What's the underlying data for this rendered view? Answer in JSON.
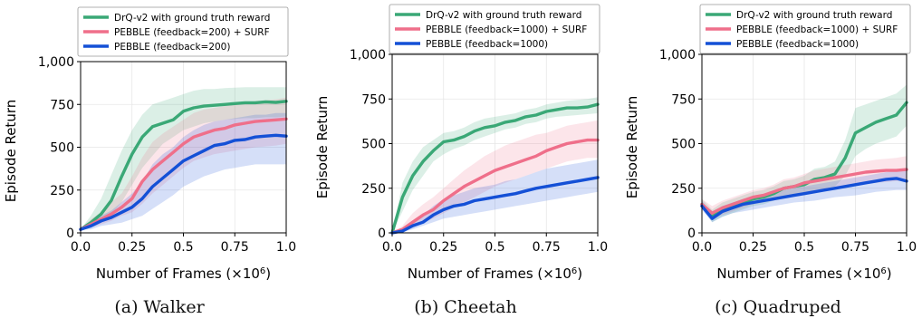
{
  "colors": {
    "drq": "#3aa876",
    "surf": "#ef6f8a",
    "pebble": "#1450d6"
  },
  "chart_data": [
    {
      "type": "line",
      "caption": "(a) Walker",
      "xlabel": "Number of Frames (×10",
      "xlabel_sup": "6",
      "xlabel_tail": ")",
      "ylabel": "Episode Return",
      "xlim": [
        0,
        1.0
      ],
      "ylim": [
        0,
        1000
      ],
      "xticks": [
        "0.0",
        "0.25",
        "0.5",
        "0.75",
        "1.0"
      ],
      "yticks": [
        "0",
        "250",
        "500",
        "750",
        "1,000"
      ],
      "grid": true,
      "legend_placement": "top",
      "series": [
        {
          "name": "DrQ-v2 with ground truth reward",
          "color_key": "drq",
          "x": [
            0,
            0.05,
            0.1,
            0.15,
            0.2,
            0.25,
            0.3,
            0.35,
            0.4,
            0.45,
            0.5,
            0.55,
            0.6,
            0.65,
            0.7,
            0.75,
            0.8,
            0.85,
            0.9,
            0.95,
            1.0
          ],
          "y": [
            20,
            60,
            110,
            190,
            330,
            460,
            560,
            620,
            640,
            660,
            710,
            730,
            740,
            745,
            750,
            755,
            760,
            760,
            765,
            762,
            768
          ],
          "lower": [
            20,
            40,
            70,
            110,
            180,
            280,
            380,
            450,
            520,
            560,
            600,
            620,
            640,
            650,
            660,
            665,
            670,
            670,
            675,
            675,
            680
          ],
          "upper": [
            20,
            100,
            200,
            340,
            480,
            600,
            690,
            750,
            770,
            790,
            810,
            830,
            840,
            840,
            845,
            848,
            850,
            850,
            850,
            850,
            850
          ]
        },
        {
          "name": "PEBBLE (feedback=200) + SURF",
          "color_key": "surf",
          "x": [
            0,
            0.05,
            0.1,
            0.15,
            0.2,
            0.25,
            0.3,
            0.35,
            0.4,
            0.45,
            0.5,
            0.55,
            0.6,
            0.65,
            0.7,
            0.75,
            0.8,
            0.85,
            0.9,
            0.95,
            1.0
          ],
          "y": [
            20,
            50,
            80,
            110,
            150,
            200,
            300,
            370,
            420,
            470,
            520,
            560,
            580,
            600,
            610,
            630,
            640,
            650,
            655,
            660,
            665
          ],
          "lower": [
            20,
            30,
            50,
            70,
            100,
            120,
            170,
            230,
            280,
            330,
            380,
            420,
            440,
            460,
            470,
            480,
            490,
            500,
            505,
            510,
            520
          ],
          "upper": [
            20,
            80,
            120,
            180,
            230,
            330,
            440,
            530,
            580,
            620,
            660,
            700,
            720,
            730,
            740,
            750,
            760,
            770,
            775,
            780,
            790
          ]
        },
        {
          "name": "PEBBLE (feedback=200)",
          "color_key": "pebble",
          "x": [
            0,
            0.05,
            0.1,
            0.15,
            0.2,
            0.25,
            0.3,
            0.35,
            0.4,
            0.45,
            0.5,
            0.55,
            0.6,
            0.65,
            0.7,
            0.75,
            0.8,
            0.85,
            0.9,
            0.95,
            1.0
          ],
          "y": [
            20,
            40,
            70,
            90,
            120,
            150,
            200,
            270,
            320,
            370,
            420,
            450,
            480,
            510,
            520,
            540,
            545,
            560,
            565,
            570,
            565
          ],
          "lower": [
            20,
            20,
            40,
            50,
            60,
            80,
            100,
            140,
            180,
            220,
            270,
            300,
            330,
            350,
            370,
            380,
            390,
            400,
            400,
            400,
            400
          ],
          "upper": [
            20,
            60,
            100,
            130,
            180,
            230,
            300,
            400,
            460,
            500,
            560,
            600,
            630,
            650,
            660,
            670,
            680,
            690,
            690,
            700,
            700
          ]
        }
      ]
    },
    {
      "type": "line",
      "caption": "(b) Cheetah",
      "xlabel": "Number of Frames (×10",
      "xlabel_sup": "6",
      "xlabel_tail": ")",
      "ylabel": "Episode Return",
      "xlim": [
        0,
        1.0
      ],
      "ylim": [
        0,
        1000
      ],
      "xticks": [
        "0.0",
        "0.25",
        "0.5",
        "0.75",
        "1.0"
      ],
      "yticks": [
        "0",
        "250",
        "500",
        "750",
        "1,000"
      ],
      "grid": true,
      "legend_placement": "top",
      "series": [
        {
          "name": "DrQ-v2 with ground truth reward",
          "color_key": "drq",
          "x": [
            0,
            0.05,
            0.1,
            0.15,
            0.2,
            0.25,
            0.3,
            0.35,
            0.4,
            0.45,
            0.5,
            0.55,
            0.6,
            0.65,
            0.7,
            0.75,
            0.8,
            0.85,
            0.9,
            0.95,
            1.0
          ],
          "y": [
            0,
            200,
            320,
            400,
            460,
            510,
            520,
            540,
            570,
            590,
            600,
            620,
            630,
            650,
            660,
            680,
            690,
            700,
            700,
            705,
            720
          ],
          "lower": [
            0,
            120,
            240,
            320,
            400,
            440,
            470,
            490,
            520,
            540,
            560,
            580,
            590,
            610,
            620,
            640,
            650,
            655,
            660,
            665,
            670
          ],
          "upper": [
            0,
            280,
            400,
            480,
            520,
            560,
            570,
            590,
            620,
            640,
            650,
            660,
            670,
            690,
            700,
            720,
            730,
            740,
            745,
            750,
            760
          ]
        },
        {
          "name": "PEBBLE (feedback=1000) + SURF",
          "color_key": "surf",
          "x": [
            0,
            0.05,
            0.1,
            0.15,
            0.2,
            0.25,
            0.3,
            0.35,
            0.4,
            0.45,
            0.5,
            0.55,
            0.6,
            0.65,
            0.7,
            0.75,
            0.8,
            0.85,
            0.9,
            0.95,
            1.0
          ],
          "y": [
            0,
            20,
            60,
            100,
            130,
            180,
            220,
            260,
            290,
            320,
            350,
            370,
            390,
            410,
            430,
            460,
            480,
            500,
            510,
            520,
            520
          ],
          "lower": [
            0,
            10,
            30,
            60,
            80,
            110,
            140,
            170,
            200,
            230,
            260,
            280,
            300,
            320,
            340,
            360,
            380,
            400,
            410,
            420,
            420
          ],
          "upper": [
            0,
            40,
            110,
            160,
            200,
            250,
            300,
            350,
            390,
            430,
            460,
            490,
            510,
            530,
            550,
            560,
            580,
            600,
            610,
            620,
            630
          ]
        },
        {
          "name": "PEBBLE (feedback=1000)",
          "color_key": "pebble",
          "x": [
            0,
            0.05,
            0.1,
            0.15,
            0.2,
            0.25,
            0.3,
            0.35,
            0.4,
            0.45,
            0.5,
            0.55,
            0.6,
            0.65,
            0.7,
            0.75,
            0.8,
            0.85,
            0.9,
            0.95,
            1.0
          ],
          "y": [
            0,
            10,
            40,
            60,
            100,
            130,
            150,
            160,
            180,
            190,
            200,
            210,
            220,
            235,
            250,
            260,
            270,
            280,
            290,
            300,
            310
          ],
          "lower": [
            0,
            5,
            20,
            40,
            60,
            80,
            90,
            100,
            110,
            120,
            130,
            140,
            150,
            160,
            170,
            180,
            190,
            200,
            210,
            220,
            230
          ],
          "upper": [
            0,
            20,
            70,
            100,
            150,
            190,
            210,
            230,
            250,
            260,
            270,
            290,
            300,
            320,
            340,
            360,
            370,
            380,
            390,
            400,
            410
          ]
        }
      ]
    },
    {
      "type": "line",
      "caption": "(c) Quadruped",
      "xlabel": "Number of Frames (×10",
      "xlabel_sup": "6",
      "xlabel_tail": ")",
      "ylabel": "Episode Return",
      "xlim": [
        0,
        1.0
      ],
      "ylim": [
        0,
        1000
      ],
      "xticks": [
        "0.0",
        "0.25",
        "0.5",
        "0.75",
        "1.0"
      ],
      "yticks": [
        "0",
        "250",
        "500",
        "750",
        "1,000"
      ],
      "grid": true,
      "legend_placement": "top",
      "series": [
        {
          "name": "DrQ-v2 with ground truth reward",
          "color_key": "drq",
          "x": [
            0,
            0.05,
            0.1,
            0.15,
            0.2,
            0.25,
            0.3,
            0.35,
            0.4,
            0.45,
            0.5,
            0.55,
            0.6,
            0.65,
            0.7,
            0.75,
            0.8,
            0.85,
            0.9,
            0.95,
            1.0
          ],
          "y": [
            160,
            90,
            130,
            150,
            170,
            190,
            200,
            220,
            250,
            260,
            270,
            300,
            310,
            330,
            420,
            560,
            590,
            620,
            640,
            660,
            730
          ],
          "lower": [
            140,
            60,
            90,
            110,
            130,
            150,
            160,
            180,
            200,
            210,
            220,
            240,
            250,
            260,
            320,
            430,
            470,
            500,
            520,
            540,
            600
          ],
          "upper": [
            190,
            130,
            170,
            190,
            210,
            230,
            240,
            260,
            290,
            300,
            320,
            360,
            370,
            400,
            520,
            700,
            720,
            740,
            760,
            780,
            830
          ]
        },
        {
          "name": "PEBBLE (feedback=1000) + SURF",
          "color_key": "surf",
          "x": [
            0,
            0.05,
            0.1,
            0.15,
            0.2,
            0.25,
            0.3,
            0.35,
            0.4,
            0.45,
            0.5,
            0.55,
            0.6,
            0.65,
            0.7,
            0.75,
            0.8,
            0.85,
            0.9,
            0.95,
            1.0
          ],
          "y": [
            160,
            110,
            140,
            160,
            180,
            200,
            210,
            230,
            250,
            260,
            280,
            290,
            300,
            310,
            320,
            330,
            340,
            345,
            350,
            350,
            355
          ],
          "lower": [
            140,
            80,
            100,
            120,
            140,
            160,
            170,
            180,
            200,
            210,
            220,
            230,
            240,
            250,
            260,
            270,
            275,
            280,
            285,
            290,
            295
          ],
          "upper": [
            190,
            150,
            180,
            200,
            220,
            240,
            250,
            270,
            300,
            310,
            330,
            350,
            360,
            370,
            380,
            390,
            400,
            410,
            415,
            420,
            430
          ]
        },
        {
          "name": "PEBBLE (feedback=1000)",
          "color_key": "pebble",
          "x": [
            0,
            0.05,
            0.1,
            0.15,
            0.2,
            0.25,
            0.3,
            0.35,
            0.4,
            0.45,
            0.5,
            0.55,
            0.6,
            0.65,
            0.7,
            0.75,
            0.8,
            0.85,
            0.9,
            0.95,
            1.0
          ],
          "y": [
            150,
            80,
            120,
            140,
            160,
            170,
            180,
            190,
            200,
            210,
            220,
            230,
            240,
            250,
            260,
            270,
            280,
            290,
            300,
            305,
            290
          ],
          "lower": [
            130,
            60,
            90,
            110,
            120,
            130,
            140,
            150,
            160,
            170,
            175,
            180,
            190,
            200,
            205,
            210,
            220,
            230,
            235,
            240,
            240
          ],
          "upper": [
            180,
            110,
            150,
            170,
            190,
            200,
            210,
            230,
            240,
            250,
            260,
            270,
            280,
            290,
            300,
            310,
            320,
            330,
            340,
            345,
            350
          ]
        }
      ]
    }
  ]
}
